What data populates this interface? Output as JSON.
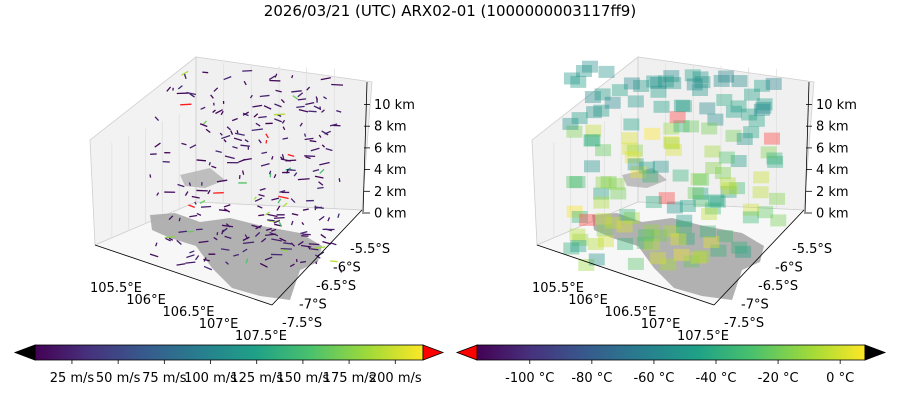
{
  "figure": {
    "title": "2026/03/21 (UTC) ARX02-01 (1000000003117ff9)"
  },
  "chart_data": [
    {
      "type": "scatter",
      "subtype": "3d-wind-barbs",
      "panel": "left",
      "x_ticks": [
        "105.5°E",
        "106°E",
        "106.5°E",
        "107°E",
        "107.5°E"
      ],
      "y_ticks": [
        "-5.5°S",
        "-6°S",
        "-6.5°S",
        "-7°S",
        "-7.5°S"
      ],
      "z_ticks": [
        "0 km",
        "2 km",
        "4 km",
        "6 km",
        "8 km",
        "10 km"
      ],
      "xlim": [
        105.3,
        107.5
      ],
      "ylim": [
        -7.6,
        -5.2
      ],
      "zlim": [
        0,
        11
      ],
      "colorbar": {
        "colormap": "viridis",
        "range": [
          5,
          215
        ],
        "extend": "both",
        "under_color": "#000000",
        "over_color": "#ff0000",
        "tick_labels": [
          "25 m/s",
          "50 m/s",
          "75 m/s",
          "100 m/s",
          "125 m/s",
          "150 m/s",
          "175 m/s",
          "200 m/s"
        ],
        "tick_values": [
          25,
          50,
          75,
          100,
          125,
          150,
          175,
          200
        ]
      }
    },
    {
      "type": "scatter",
      "subtype": "3d-voxels",
      "panel": "right",
      "x_ticks": [
        "105.5°E",
        "106°E",
        "106.5°E",
        "107°E",
        "107.5°E"
      ],
      "y_ticks": [
        "-5.5°S",
        "-6°S",
        "-6.5°S",
        "-7°S",
        "-7.5°S"
      ],
      "z_ticks": [
        "0 km",
        "2 km",
        "4 km",
        "6 km",
        "8 km",
        "10 km"
      ],
      "xlim": [
        105.3,
        107.5
      ],
      "ylim": [
        -7.6,
        -5.2
      ],
      "zlim": [
        0,
        11
      ],
      "colorbar": {
        "colormap": "viridis",
        "range": [
          -117,
          8
        ],
        "extend": "both",
        "under_color": "#ff0000",
        "over_color": "#000000",
        "tick_labels": [
          "-100 °C",
          "-80 °C",
          "-60 °C",
          "-40 °C",
          "-20 °C",
          "0 °C"
        ],
        "tick_values": [
          -100,
          -80,
          -60,
          -40,
          -20,
          0
        ]
      }
    }
  ]
}
